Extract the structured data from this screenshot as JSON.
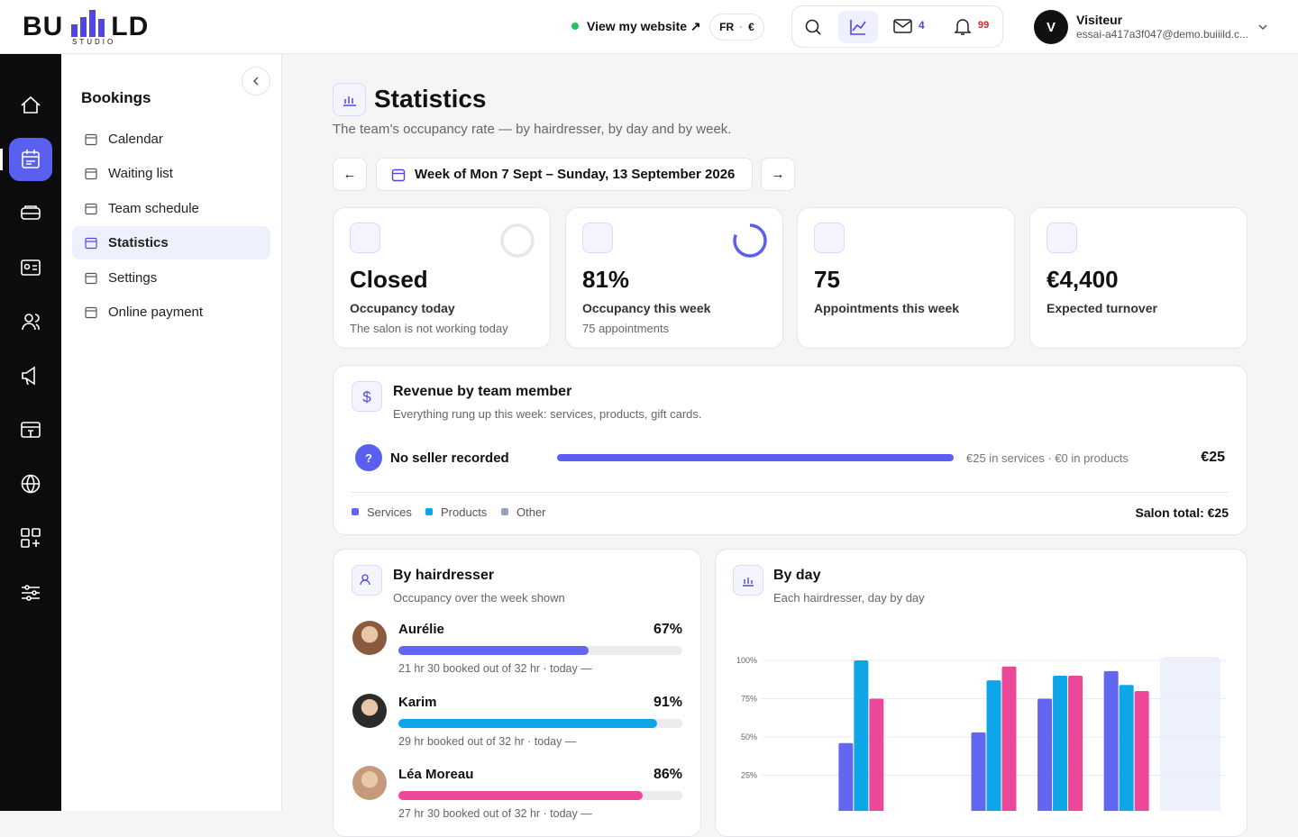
{
  "header": {
    "logo_left": "BU",
    "logo_right": "LD",
    "logo_sub": "STUDIO",
    "view_site": "View my website ↗",
    "language": "FR",
    "currency": "€",
    "mail_count": 4,
    "notification_count": 99,
    "user": {
      "initial": "V",
      "name": "Visiteur",
      "email": "essai-a417a3f047@demo.buiiild.c..."
    }
  },
  "sidebar": {
    "title": "Bookings",
    "items": [
      "Calendar",
      "Waiting list",
      "Team schedule",
      "Statistics",
      "Settings",
      "Online payment"
    ],
    "active": 3
  },
  "page": {
    "title": "Statistics",
    "subtitle": "The team’s occupancy rate — by hairdresser, by day and by week.",
    "week": "Week of Mon 7 Sept – Sunday, 13 September 2026",
    "prev": "←",
    "next": "→"
  },
  "kpis": [
    {
      "value": "Closed",
      "ring": 0,
      "label": "Occupancy today",
      "note": "The salon is not working today"
    },
    {
      "value": "81%",
      "ring": 81,
      "label": "Occupancy this week",
      "note": "75 appointments"
    },
    {
      "value": "75",
      "label": "Appointments this week"
    },
    {
      "value": "€4,400",
      "label": "Expected turnover"
    }
  ],
  "revenue": {
    "title": "Revenue by team member",
    "subtitle": "Everything rung up this week: services, products, gift cards.",
    "rows": [
      {
        "badge": "?",
        "name": "No seller recorded",
        "detail": "€25 in services · €0 in products",
        "amount": {
          "value": 25,
          "label": "€25"
        }
      }
    ],
    "legend": [
      {
        "name": "Services",
        "color": "#6366f1"
      },
      {
        "name": "Products",
        "color": "#0ea5e9"
      },
      {
        "name": "Other",
        "color": "#94a3b8"
      }
    ],
    "total": "Salon total: €25"
  },
  "by_hairdresser": {
    "title": "By hairdresser",
    "subtitle": "Occupancy over the week shown",
    "members": [
      {
        "name": "Aurélie",
        "pct": {
          "value": 67,
          "label": "67%"
        },
        "detail": "21 hr 30 booked out of 32 hr · today —",
        "color": "#6366f1"
      },
      {
        "name": "Karim",
        "pct": {
          "value": 91,
          "label": "91%"
        },
        "detail": "29 hr booked out of 32 hr · today —",
        "color": "#0ea5e9"
      },
      {
        "name": "Léa Moreau",
        "pct": {
          "value": 86,
          "label": "86%"
        },
        "detail": "27 hr 30 booked out of 32 hr · today —",
        "color": "#ec4899"
      }
    ]
  },
  "by_day": {
    "title": "By day",
    "subtitle": "Each hairdresser, day by day",
    "chart": {
      "type": "bar",
      "categories": [
        null,
        null,
        null,
        null,
        null,
        null,
        null
      ],
      "series": [
        {
          "color": "#6366f1",
          "values": [
            null,
            46,
            null,
            53,
            75,
            93,
            null
          ]
        },
        {
          "color": "#0ea5e9",
          "values": [
            null,
            100,
            null,
            87,
            90,
            84,
            null
          ]
        },
        {
          "color": "#ec4899",
          "values": [
            null,
            75,
            null,
            96,
            90,
            80,
            null
          ]
        }
      ],
      "ylim": [
        0,
        100
      ],
      "yticks": [
        {
          "value": 25,
          "label": "25%"
        },
        {
          "value": 50,
          "label": "50%"
        },
        {
          "value": 75,
          "label": "75%"
        },
        {
          "value": 100,
          "label": "100%"
        }
      ],
      "grid": true
    }
  }
}
